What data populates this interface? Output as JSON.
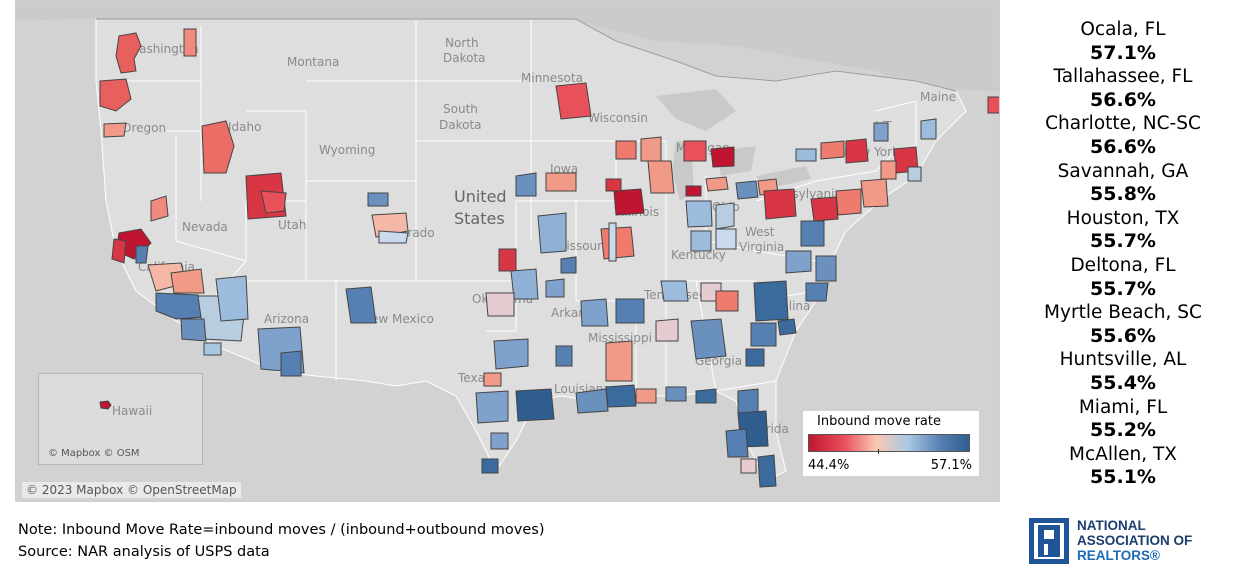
{
  "map": {
    "country_label_1": "United",
    "country_label_2": "States",
    "regions": [
      {
        "id": "washington",
        "label": "Washington"
      },
      {
        "id": "oregon",
        "label": "Oregon"
      },
      {
        "id": "idaho",
        "label": "Idaho"
      },
      {
        "id": "montana",
        "label": "Montana"
      },
      {
        "id": "wyoming",
        "label": "Wyoming"
      },
      {
        "id": "nevada",
        "label": "Nevada"
      },
      {
        "id": "utah",
        "label": "Utah"
      },
      {
        "id": "california",
        "label": "California"
      },
      {
        "id": "arizona",
        "label": "Arizona"
      },
      {
        "id": "colorado",
        "label": "Colorado"
      },
      {
        "id": "new-mexico",
        "label": "New Mexico"
      },
      {
        "id": "north-dakota",
        "label": "North Dakota"
      },
      {
        "id": "south-dakota",
        "label": "South Dakota"
      },
      {
        "id": "minnesota",
        "label": "Minnesota"
      },
      {
        "id": "wisconsin",
        "label": "Wisconsin"
      },
      {
        "id": "iowa",
        "label": "Iowa"
      },
      {
        "id": "illinois",
        "label": "Illinois"
      },
      {
        "id": "missouri",
        "label": "Missouri"
      },
      {
        "id": "oklahoma",
        "label": "Oklahoma"
      },
      {
        "id": "texas",
        "label": "Texas"
      },
      {
        "id": "arkansas",
        "label": "Arkansas"
      },
      {
        "id": "louisiana",
        "label": "Louisiana"
      },
      {
        "id": "mississippi",
        "label": "Mississippi"
      },
      {
        "id": "tennessee",
        "label": "Tennessee"
      },
      {
        "id": "kentucky",
        "label": "Kentucky"
      },
      {
        "id": "georgia",
        "label": "Georgia"
      },
      {
        "id": "florida",
        "label": "Florida"
      },
      {
        "id": "ohio",
        "label": "Ohio"
      },
      {
        "id": "michigan",
        "label": "Michigan"
      },
      {
        "id": "west-virginia",
        "label": "West Virginia"
      },
      {
        "id": "pennsylvania",
        "label": "Pennsylvania"
      },
      {
        "id": "new-york",
        "label": "New York"
      },
      {
        "id": "vermont",
        "label": "VT"
      },
      {
        "id": "maine",
        "label": "Maine"
      },
      {
        "id": "carolina",
        "label": "Carolina"
      }
    ],
    "inset_label": "Hawaii",
    "inset_attribution": "© Mapbox © OSM",
    "attribution": "© 2023 Mapbox © OpenStreetMap",
    "colors": {
      "low": "#c01530",
      "mid": "#f6d3c4",
      "high": "#2f5e8e",
      "land": "#d6d6d6",
      "border": "#ffffff"
    }
  },
  "legend": {
    "title": "Inbound move rate",
    "min_label": "44.4%",
    "max_label": "57.1%"
  },
  "ranking": [
    {
      "city": "Ocala, FL",
      "value": "57.1%"
    },
    {
      "city": "Tallahassee, FL",
      "value": "56.6%"
    },
    {
      "city": "Charlotte, NC-SC",
      "value": "56.6%"
    },
    {
      "city": "Savannah, GA",
      "value": "55.8%"
    },
    {
      "city": "Houston, TX",
      "value": "55.7%"
    },
    {
      "city": "Deltona, FL",
      "value": "55.7%"
    },
    {
      "city": "Myrtle Beach, SC",
      "value": "55.6%"
    },
    {
      "city": "Huntsville, AL",
      "value": "55.4%"
    },
    {
      "city": "Miami, FL",
      "value": "55.2%"
    },
    {
      "city": "McAllen, TX",
      "value": "55.1%"
    }
  ],
  "notes": {
    "note": "Note: Inbound Move Rate=inbound moves / (inbound+outbound moves)",
    "source": "Source: NAR analysis of USPS data"
  },
  "logo": {
    "line1": "NATIONAL",
    "line2": "ASSOCIATION OF",
    "line3": "REALTORS®"
  }
}
